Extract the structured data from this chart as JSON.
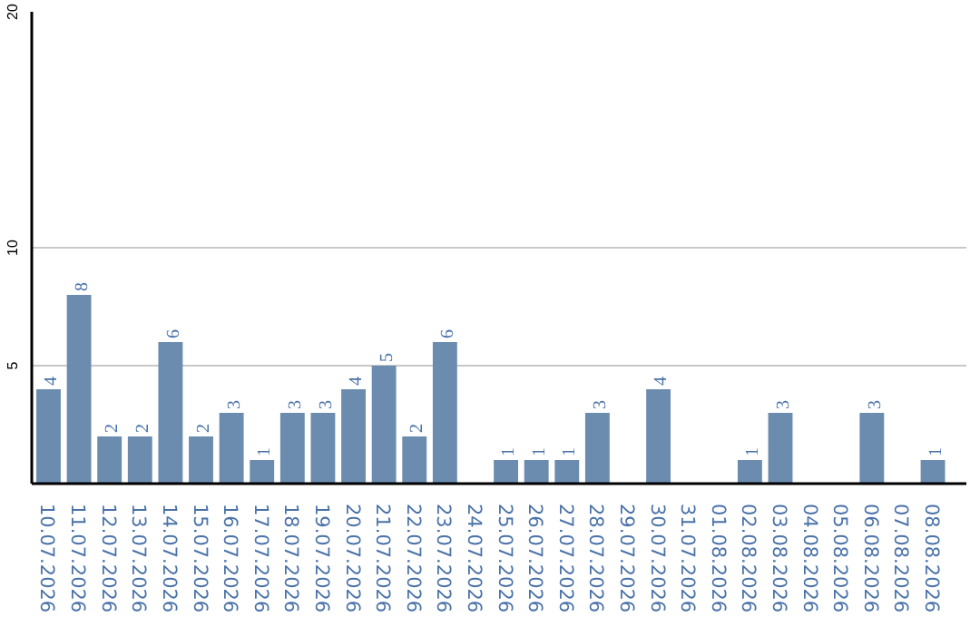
{
  "chart_data": {
    "type": "bar",
    "categories": [
      "10.07.2026",
      "11.07.2026",
      "12.07.2026",
      "13.07.2026",
      "14.07.2026",
      "15.07.2026",
      "16.07.2026",
      "17.07.2026",
      "18.07.2026",
      "19.07.2026",
      "20.07.2026",
      "21.07.2026",
      "22.07.2026",
      "23.07.2026",
      "24.07.2026",
      "25.07.2026",
      "26.07.2026",
      "27.07.2026",
      "28.07.2026",
      "29.07.2026",
      "30.07.2026",
      "31.07.2026",
      "01.08.2026",
      "02.08.2026",
      "03.08.2026",
      "04.08.2026",
      "05.08.2026",
      "06.08.2026",
      "07.08.2026",
      "08.08.2026"
    ],
    "values": [
      4,
      8,
      2,
      2,
      6,
      2,
      3,
      1,
      3,
      3,
      4,
      5,
      2,
      6,
      null,
      1,
      1,
      1,
      3,
      null,
      4,
      null,
      null,
      1,
      3,
      null,
      null,
      3,
      null,
      1
    ],
    "color": "#6b8cae",
    "ylim": [
      0,
      20
    ],
    "yticks": [
      {
        "value": 0,
        "label": null
      },
      5,
      10,
      20
    ],
    "grid": "y",
    "data_labels": true
  }
}
